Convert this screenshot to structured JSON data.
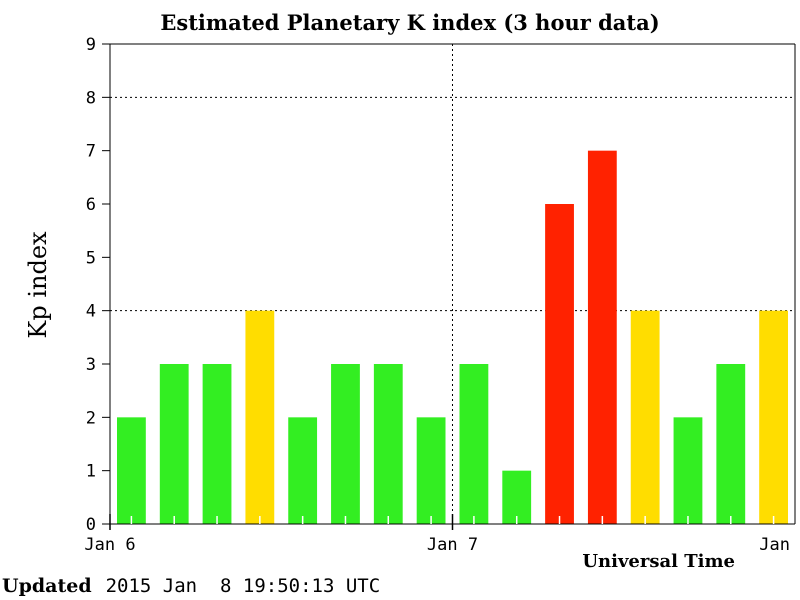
{
  "chart_data": {
    "type": "bar",
    "title": "Estimated Planetary K index (3 hour data)",
    "ylabel": "Kp index",
    "xlabel": "Universal Time",
    "ylim": [
      0,
      9
    ],
    "y_ticks": [
      "0",
      "1",
      "2",
      "3",
      "4",
      "5",
      "6",
      "7",
      "8",
      "9"
    ],
    "x_tick_labels": [
      "Jan 6",
      "Jan 7",
      "Jan"
    ],
    "grid": "dotted horizontal at Kp 4 and 8; dotted vertical at day boundaries",
    "values": [
      2,
      3,
      3,
      4,
      2,
      3,
      3,
      2,
      3,
      1,
      6,
      7,
      4,
      2,
      3,
      4
    ],
    "colors": {
      "quiet": "#33ee22",
      "active": "#ffdd00",
      "storm": "#ff2200"
    }
  },
  "footer": {
    "label": "Updated",
    "value": "2015 Jan  8 19:50:13 UTC"
  }
}
